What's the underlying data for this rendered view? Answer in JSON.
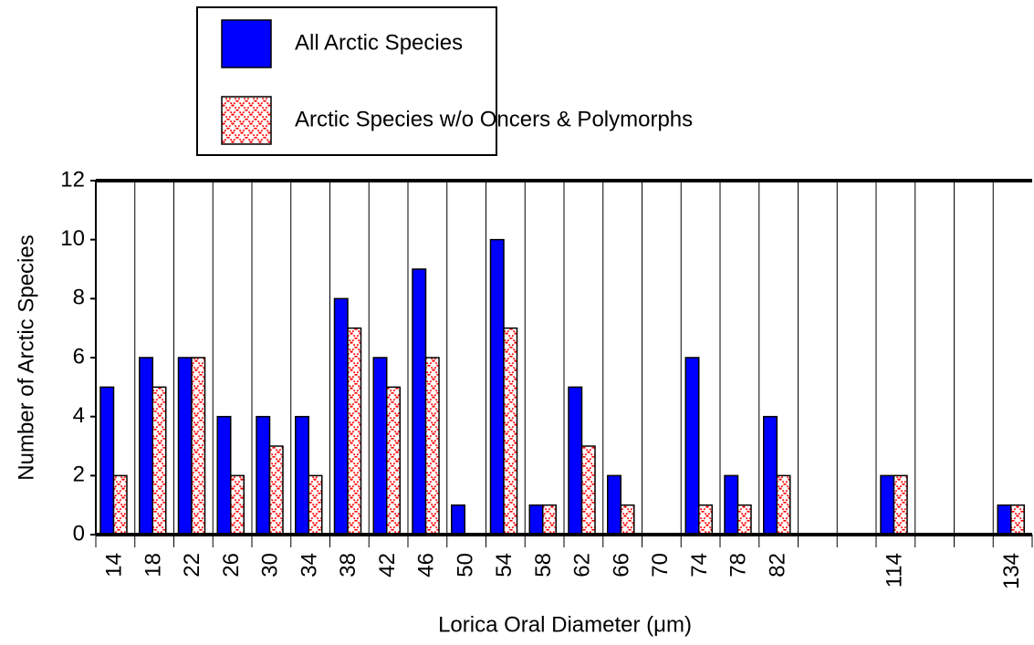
{
  "chart_data": {
    "type": "bar",
    "x_label": "Lorica Oral Diameter (μm)",
    "y_label": "Number of Arctic Species",
    "categories": [
      "14",
      "18",
      "22",
      "26",
      "30",
      "34",
      "38",
      "42",
      "46",
      "50",
      "54",
      "58",
      "62",
      "66",
      "70",
      "74",
      "78",
      "82",
      null,
      null,
      "114",
      null,
      null,
      "134"
    ],
    "series": [
      {
        "name": "All Arctic Species",
        "color": "#0000ff",
        "values": [
          5,
          6,
          6,
          4,
          4,
          4,
          8,
          6,
          9,
          1,
          10,
          1,
          5,
          2,
          0,
          6,
          2,
          4,
          0,
          0,
          2,
          0,
          0,
          1
        ]
      },
      {
        "name": "Arctic Species w/o Oncers & Polymorphs",
        "color": "#ff0000",
        "values": [
          2,
          5,
          6,
          2,
          3,
          2,
          7,
          5,
          6,
          0,
          7,
          1,
          3,
          1,
          0,
          1,
          1,
          2,
          0,
          0,
          2,
          0,
          0,
          1
        ]
      }
    ],
    "ylim": [
      0,
      12
    ],
    "yticks": [
      0,
      2,
      4,
      6,
      8,
      10,
      12
    ],
    "grid": true,
    "legend": "top"
  }
}
